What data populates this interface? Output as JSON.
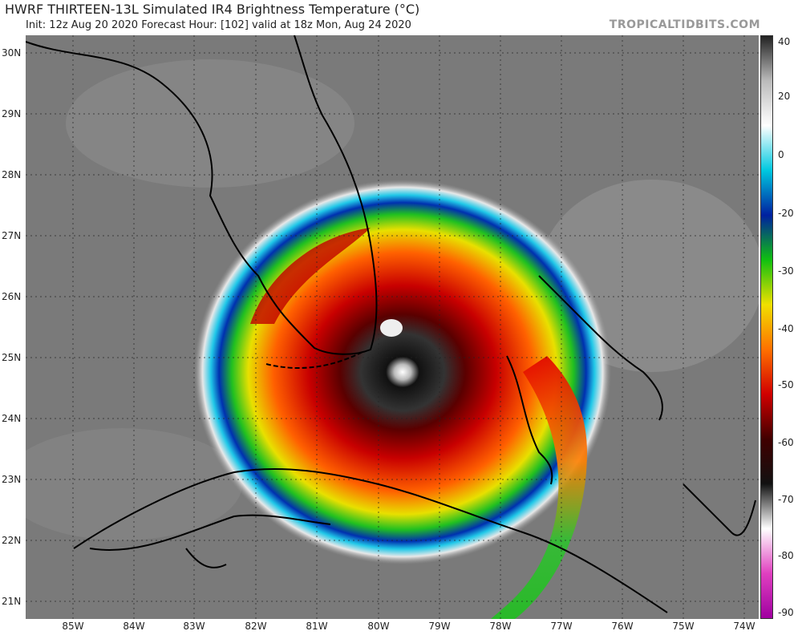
{
  "header": {
    "title": "HWRF THIRTEEN-13L Simulated IR4 Brightness Temperature (°C)",
    "subtitle": "Init: 12z Aug 20 2020   Forecast Hour: [102]   valid at 18z Mon, Aug 24 2020",
    "brand": "TROPICALTIDBITS.COM"
  },
  "axes": {
    "lat_labels": [
      "30N",
      "29N",
      "28N",
      "27N",
      "26N",
      "25N",
      "24N",
      "23N",
      "22N",
      "21N"
    ],
    "lon_labels": [
      "85W",
      "84W",
      "83W",
      "82W",
      "81W",
      "80W",
      "79W",
      "78W",
      "77W",
      "76W",
      "75W",
      "74W"
    ]
  },
  "colorbar": {
    "labels": [
      "40",
      "20",
      "0",
      "-20",
      "-30",
      "-40",
      "-50",
      "-60",
      "-70",
      "-80",
      "-90"
    ],
    "stops": [
      "#222222",
      "#bbbbbb",
      "#ffffff",
      "#00c8e0",
      "#0020a0",
      "#10c010",
      "#f0e000",
      "#ff7000",
      "#d00000",
      "#400000",
      "#111111",
      "#ffffff",
      "#e040c0",
      "#a000a0"
    ]
  }
}
